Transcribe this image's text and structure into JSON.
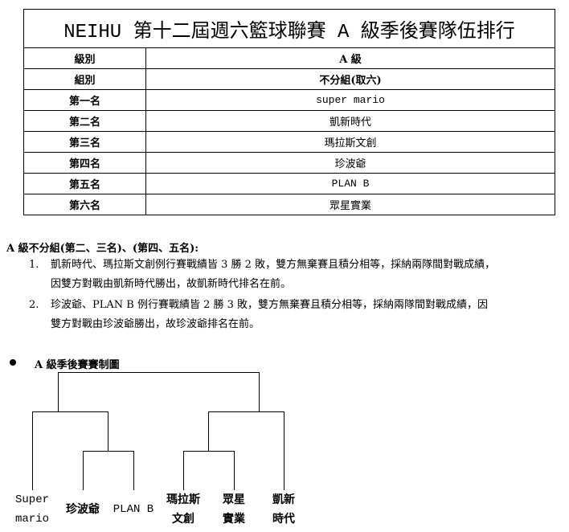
{
  "title": "NEIHU 第十二屆週六籃球聯賽 A 級季後賽隊伍排行",
  "rows": [
    {
      "label": "級別",
      "value": "A 級"
    },
    {
      "label": "組別",
      "value": "不分組(取六)"
    },
    {
      "label": "第一名",
      "value": "super mario"
    },
    {
      "label": "第二名",
      "value": "凱新時代"
    },
    {
      "label": "第三名",
      "value": "瑪拉斯文創"
    },
    {
      "label": "第四名",
      "value": "珍波爺"
    },
    {
      "label": "第五名",
      "value": "PLAN B"
    },
    {
      "label": "第六名",
      "value": "眾星實業"
    }
  ],
  "notes": {
    "heading": "A 級不分組(第二、三名)、(第四、五名):",
    "items": [
      {
        "num": "1.",
        "line1": "凱新時代、瑪拉斯文創例行賽戰績皆 3 勝 2 敗，雙方無棄賽且積分相等，採納兩隊間對戰成績，",
        "line2": "因雙方對戰由凱新時代勝出，故凱新時代排名在前。"
      },
      {
        "num": "2.",
        "line1": "珍波爺、PLAN B 例行賽戰績皆 2 勝 3 敗，雙方無棄賽且積分相等，採納兩隊間對戰成績，因",
        "line2": "雙方對戰由珍波爺勝出，故珍波爺排名在前。"
      }
    ]
  },
  "bracket": {
    "title": "A 級季後賽賽制圖",
    "teams": [
      {
        "line1": "Super",
        "line2": "mario"
      },
      {
        "line1": "珍波爺",
        "line2": ""
      },
      {
        "line1": "PLAN B",
        "line2": ""
      },
      {
        "line1": "瑪拉斯",
        "line2": "文創"
      },
      {
        "line1": "眾星",
        "line2": "實業"
      },
      {
        "line1": "凱新",
        "line2": "時代"
      }
    ]
  }
}
